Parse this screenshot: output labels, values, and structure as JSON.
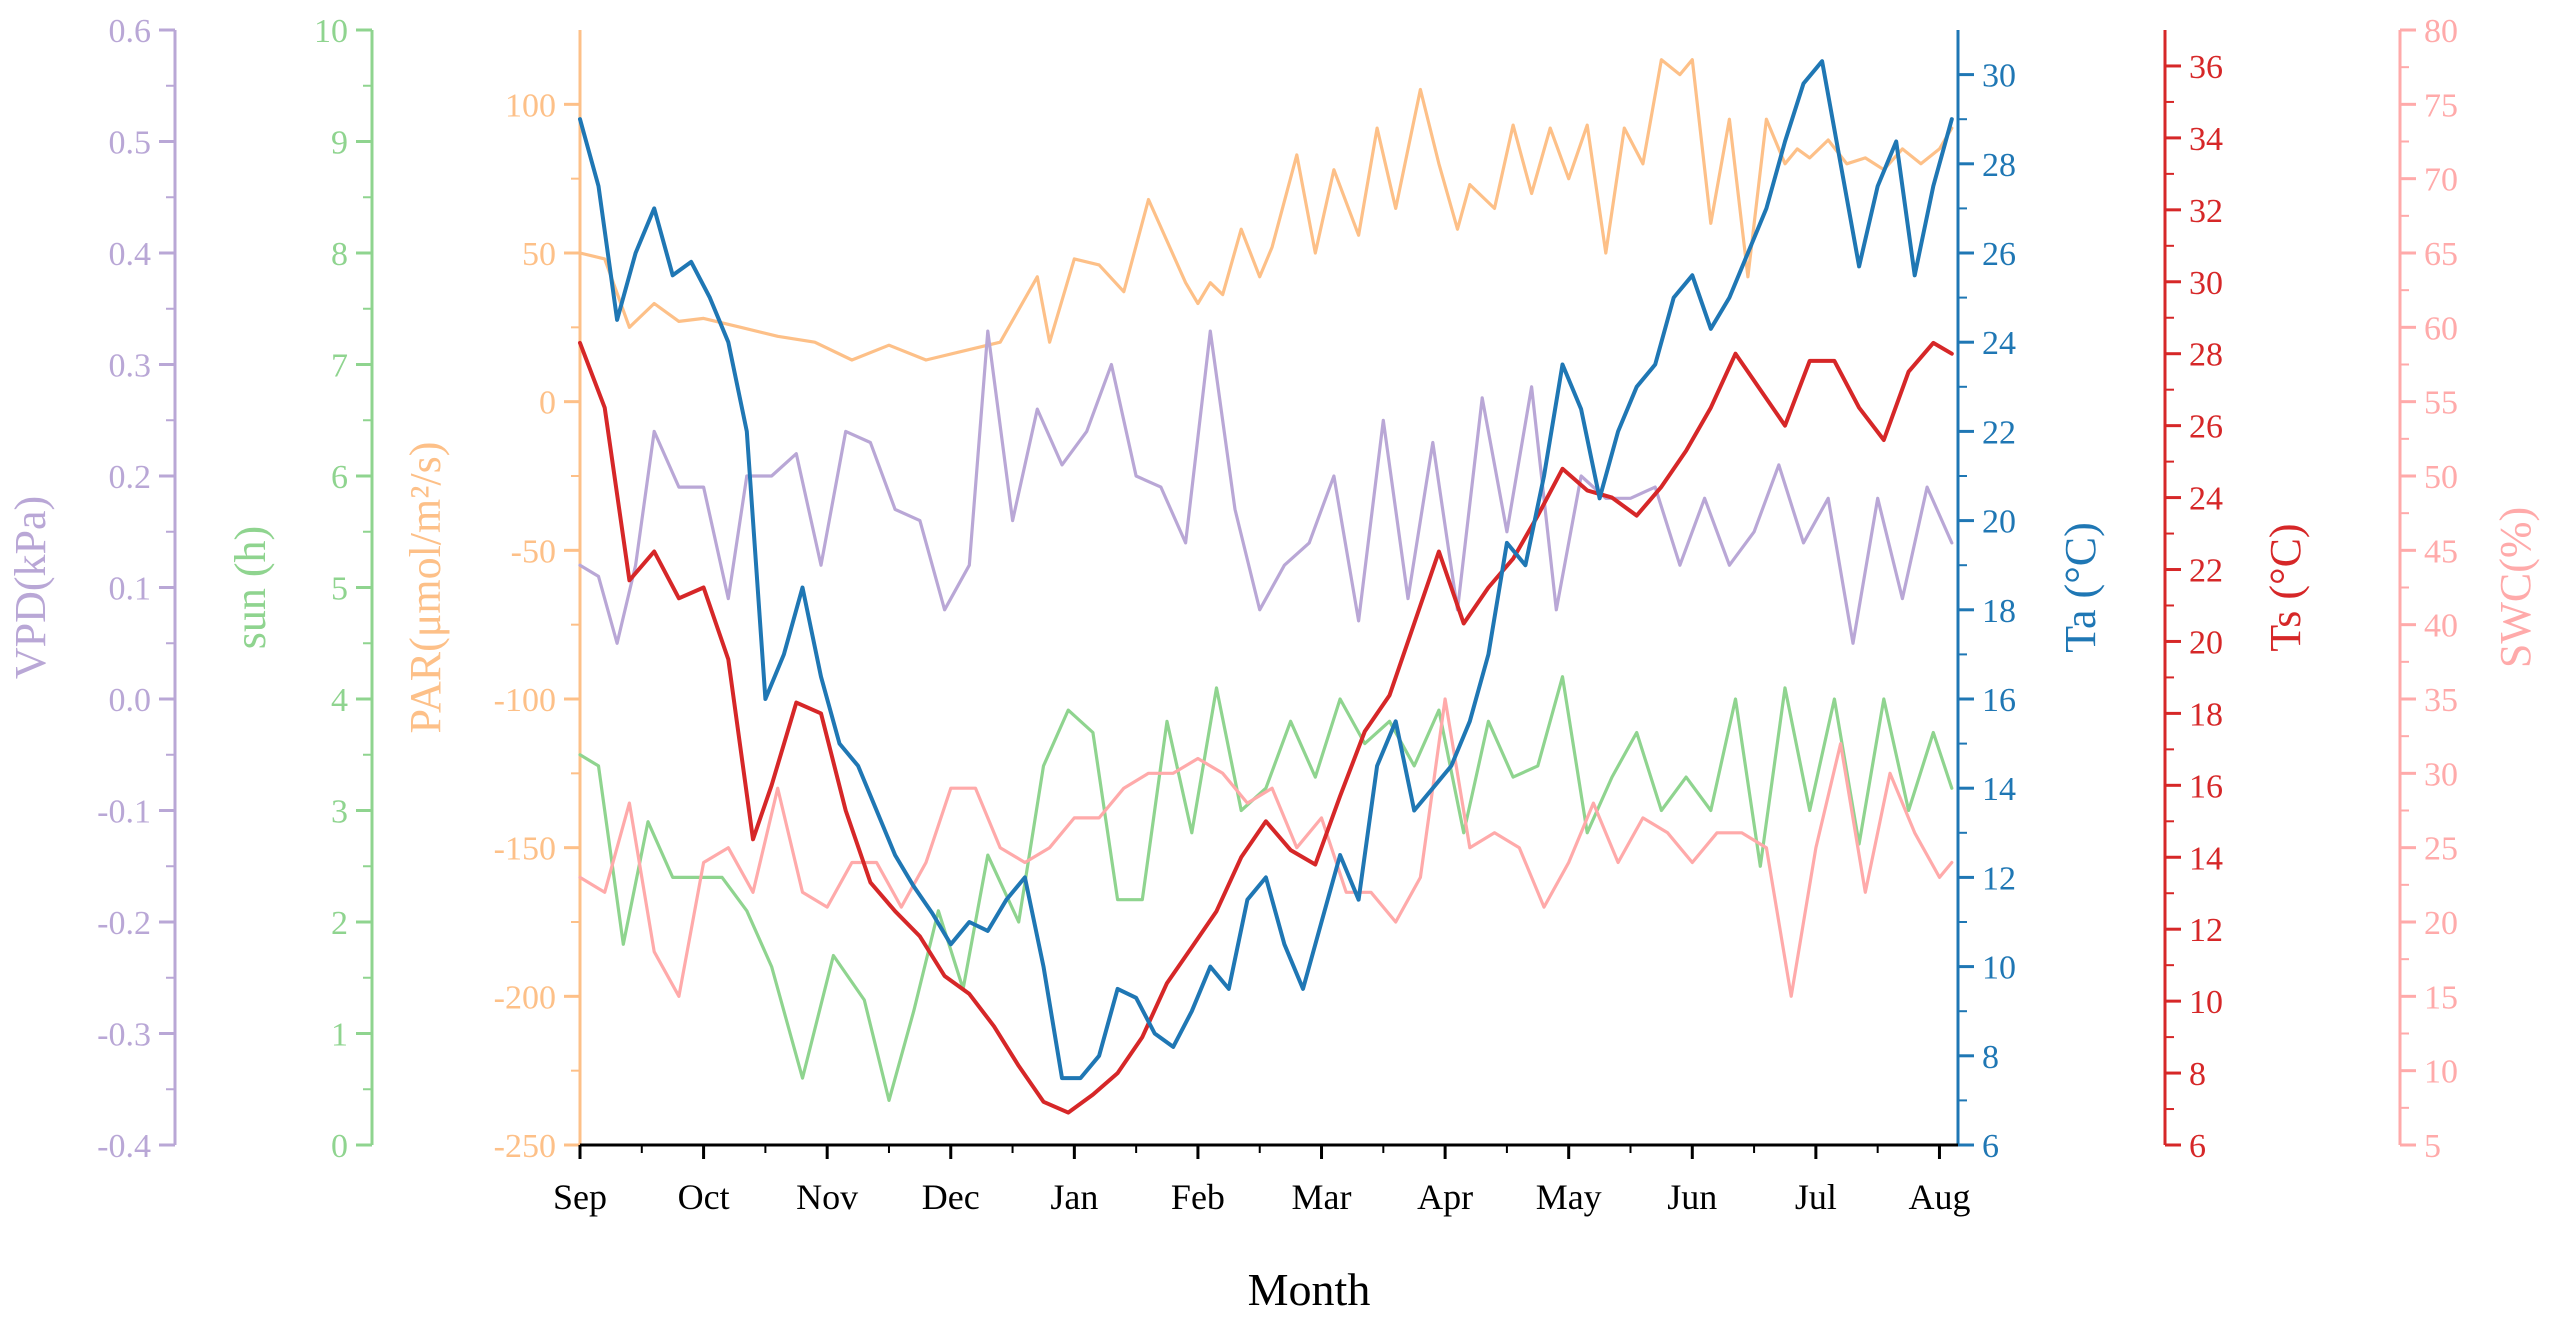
{
  "chart_data": {
    "type": "line",
    "title": "",
    "xlabel": "Month",
    "categories": [
      "Sep",
      "Oct",
      "Nov",
      "Dec",
      "Jan",
      "Feb",
      "Mar",
      "Apr",
      "May",
      "Jun",
      "Jul",
      "Aug"
    ],
    "grid": false,
    "axes": [
      {
        "id": "vpd",
        "label": "VPD(kPa)",
        "color": "#b9a7d6",
        "range": [
          -0.4,
          0.6
        ],
        "ticks": [
          "-0.4",
          "-0.3",
          "-0.2",
          "-0.1",
          "0.0",
          "0.1",
          "0.2",
          "0.3",
          "0.4",
          "0.5",
          "0.6"
        ]
      },
      {
        "id": "sun",
        "label": "sun (h)",
        "color": "#8fd48f",
        "range": [
          0,
          10
        ],
        "ticks": [
          "0",
          "1",
          "2",
          "3",
          "4",
          "5",
          "6",
          "7",
          "8",
          "9",
          "10"
        ]
      },
      {
        "id": "par",
        "label": "PAR(μmol/m²/s)",
        "color": "#fdc088",
        "range": [
          -250,
          125
        ],
        "ticks": [
          "-250",
          "-200",
          "-150",
          "-100",
          "-50",
          "0",
          "50",
          "100"
        ]
      },
      {
        "id": "ta",
        "label": "Ta (°C)",
        "color": "#1f77b4",
        "range": [
          6,
          31
        ],
        "ticks": [
          "6",
          "8",
          "10",
          "12",
          "14",
          "16",
          "18",
          "20",
          "22",
          "24",
          "26",
          "28",
          "30"
        ]
      },
      {
        "id": "ts",
        "label": "Ts (°C)",
        "color": "#d62728",
        "range": [
          6,
          37
        ],
        "ticks": [
          "6",
          "8",
          "10",
          "12",
          "14",
          "16",
          "18",
          "20",
          "22",
          "24",
          "26",
          "28",
          "30",
          "32",
          "34",
          "36"
        ]
      },
      {
        "id": "swc",
        "label": "SWC(%)",
        "color": "#ffaaaa",
        "range": [
          5,
          80
        ],
        "ticks": [
          "5",
          "10",
          "15",
          "20",
          "25",
          "30",
          "35",
          "40",
          "45",
          "50",
          "55",
          "60",
          "65",
          "70",
          "75",
          "80"
        ]
      }
    ],
    "series": [
      {
        "name": "PAR",
        "axis": "par",
        "color": "#fdc088",
        "x": [
          0,
          0.2,
          0.4,
          0.6,
          0.8,
          1.0,
          1.3,
          1.6,
          1.9,
          2.2,
          2.5,
          2.8,
          3.1,
          3.4,
          3.7,
          3.8,
          4.0,
          4.2,
          4.4,
          4.6,
          4.9,
          5.0,
          5.1,
          5.2,
          5.35,
          5.5,
          5.6,
          5.8,
          5.95,
          6.1,
          6.3,
          6.45,
          6.6,
          6.8,
          6.95,
          7.1,
          7.2,
          7.4,
          7.55,
          7.7,
          7.85,
          8.0,
          8.15,
          8.3,
          8.45,
          8.6,
          8.75,
          8.9,
          9.0,
          9.15,
          9.3,
          9.45,
          9.6,
          9.75,
          9.85,
          9.95,
          10.1,
          10.25,
          10.4,
          10.55,
          10.7,
          10.85,
          11.0,
          11.1
        ],
        "values": [
          50,
          48,
          25,
          33,
          27,
          28,
          25,
          22,
          20,
          14,
          19,
          14,
          17,
          20,
          42,
          20,
          48,
          46,
          37,
          68,
          40,
          33,
          40,
          36,
          58,
          42,
          52,
          83,
          50,
          78,
          56,
          92,
          65,
          105,
          80,
          58,
          73,
          65,
          93,
          70,
          92,
          75,
          93,
          50,
          92,
          80,
          115,
          110,
          115,
          60,
          95,
          42,
          95,
          80,
          85,
          82,
          88,
          80,
          82,
          78,
          85,
          80,
          85,
          92
        ]
      },
      {
        "name": "sun",
        "axis": "sun",
        "color": "#8fd48f",
        "x": [
          0,
          0.15,
          0.35,
          0.55,
          0.75,
          0.95,
          1.15,
          1.35,
          1.55,
          1.8,
          2.05,
          2.3,
          2.5,
          2.7,
          2.9,
          3.1,
          3.3,
          3.55,
          3.75,
          3.95,
          4.15,
          4.35,
          4.55,
          4.75,
          4.95,
          5.15,
          5.35,
          5.55,
          5.75,
          5.95,
          6.15,
          6.35,
          6.55,
          6.75,
          6.95,
          7.15,
          7.35,
          7.55,
          7.75,
          7.95,
          8.15,
          8.35,
          8.55,
          8.75,
          8.95,
          9.15,
          9.35,
          9.55,
          9.75,
          9.95,
          10.15,
          10.35,
          10.55,
          10.75,
          10.95,
          11.1
        ],
        "values": [
          3.5,
          3.4,
          1.8,
          2.9,
          2.4,
          2.4,
          2.4,
          2.1,
          1.6,
          0.6,
          1.7,
          1.3,
          0.4,
          1.2,
          2.1,
          1.4,
          2.6,
          2.0,
          3.4,
          3.9,
          3.7,
          2.2,
          2.2,
          3.8,
          2.8,
          4.1,
          3.0,
          3.2,
          3.8,
          3.3,
          4.0,
          3.6,
          3.8,
          3.4,
          3.9,
          2.8,
          3.8,
          3.3,
          3.4,
          4.2,
          2.8,
          3.3,
          3.7,
          3.0,
          3.3,
          3.0,
          4.0,
          2.5,
          4.1,
          3.0,
          4.0,
          2.7,
          4.0,
          3.0,
          3.7,
          3.2
        ]
      },
      {
        "name": "VPD",
        "axis": "vpd",
        "color": "#b9a7d6",
        "x": [
          0,
          0.15,
          0.3,
          0.45,
          0.6,
          0.8,
          1.0,
          1.2,
          1.35,
          1.55,
          1.75,
          1.95,
          2.15,
          2.35,
          2.55,
          2.75,
          2.95,
          3.15,
          3.3,
          3.5,
          3.7,
          3.9,
          4.1,
          4.3,
          4.5,
          4.7,
          4.9,
          5.1,
          5.3,
          5.5,
          5.7,
          5.9,
          6.1,
          6.3,
          6.5,
          6.7,
          6.9,
          7.1,
          7.3,
          7.5,
          7.7,
          7.9,
          8.1,
          8.3,
          8.5,
          8.7,
          8.9,
          9.1,
          9.3,
          9.5,
          9.7,
          9.9,
          10.1,
          10.3,
          10.5,
          10.7,
          10.9,
          11.1
        ],
        "values": [
          0.12,
          0.11,
          0.05,
          0.12,
          0.24,
          0.19,
          0.19,
          0.09,
          0.2,
          0.2,
          0.22,
          0.12,
          0.24,
          0.23,
          0.17,
          0.16,
          0.08,
          0.12,
          0.33,
          0.16,
          0.26,
          0.21,
          0.24,
          0.3,
          0.2,
          0.19,
          0.14,
          0.33,
          0.17,
          0.08,
          0.12,
          0.14,
          0.2,
          0.07,
          0.25,
          0.09,
          0.23,
          0.08,
          0.27,
          0.15,
          0.28,
          0.08,
          0.2,
          0.18,
          0.18,
          0.19,
          0.12,
          0.18,
          0.12,
          0.15,
          0.21,
          0.14,
          0.18,
          0.05,
          0.18,
          0.09,
          0.19,
          0.14
        ]
      },
      {
        "name": "SWC",
        "axis": "swc",
        "color": "#ffaaaa",
        "x": [
          0,
          0.2,
          0.4,
          0.6,
          0.8,
          1.0,
          1.2,
          1.4,
          1.6,
          1.8,
          2.0,
          2.2,
          2.4,
          2.6,
          2.8,
          3.0,
          3.2,
          3.4,
          3.6,
          3.8,
          4.0,
          4.2,
          4.4,
          4.6,
          4.8,
          5.0,
          5.2,
          5.4,
          5.6,
          5.8,
          6.0,
          6.2,
          6.4,
          6.6,
          6.8,
          7.0,
          7.2,
          7.4,
          7.6,
          7.8,
          8.0,
          8.2,
          8.4,
          8.6,
          8.8,
          9.0,
          9.2,
          9.4,
          9.6,
          9.8,
          10.0,
          10.2,
          10.4,
          10.6,
          10.8,
          11.0,
          11.1
        ],
        "values": [
          23,
          22,
          28,
          18,
          15,
          24,
          25,
          22,
          29,
          22,
          21,
          24,
          24,
          21,
          24,
          29,
          29,
          25,
          24,
          25,
          27,
          27,
          29,
          30,
          30,
          31,
          30,
          28,
          29,
          25,
          27,
          22,
          22,
          20,
          23,
          35,
          25,
          26,
          25,
          21,
          24,
          28,
          24,
          27,
          26,
          24,
          26,
          26,
          25,
          15,
          25,
          32,
          22,
          30,
          26,
          23,
          24
        ]
      },
      {
        "name": "Ts",
        "axis": "ts",
        "color": "#d62728",
        "x": [
          0,
          0.2,
          0.4,
          0.6,
          0.8,
          1.0,
          1.2,
          1.4,
          1.55,
          1.75,
          1.95,
          2.15,
          2.35,
          2.55,
          2.75,
          2.95,
          3.15,
          3.35,
          3.55,
          3.75,
          3.95,
          4.15,
          4.35,
          4.55,
          4.75,
          4.95,
          5.15,
          5.35,
          5.55,
          5.75,
          5.95,
          6.15,
          6.35,
          6.55,
          6.75,
          6.95,
          7.15,
          7.35,
          7.55,
          7.75,
          7.95,
          8.15,
          8.35,
          8.55,
          8.75,
          8.95,
          9.15,
          9.35,
          9.55,
          9.75,
          9.95,
          10.15,
          10.35,
          10.55,
          10.75,
          10.95,
          11.1
        ],
        "values": [
          28.3,
          26.5,
          21.7,
          22.5,
          21.2,
          21.5,
          19.5,
          14.5,
          16.0,
          18.3,
          18.0,
          15.3,
          13.3,
          12.5,
          11.8,
          10.7,
          10.2,
          9.3,
          8.2,
          7.2,
          6.9,
          7.4,
          8.0,
          9.0,
          10.5,
          11.5,
          12.5,
          14.0,
          15.0,
          14.2,
          13.8,
          15.7,
          17.5,
          18.5,
          20.5,
          22.5,
          20.5,
          21.5,
          22.3,
          23.5,
          24.8,
          24.2,
          24.0,
          23.5,
          24.3,
          25.3,
          26.5,
          28.0,
          27.0,
          26.0,
          27.8,
          27.8,
          26.5,
          25.6,
          27.5,
          28.3,
          28.0
        ]
      },
      {
        "name": "Ta",
        "axis": "ta",
        "color": "#1f77b4",
        "x": [
          0,
          0.15,
          0.3,
          0.45,
          0.6,
          0.75,
          0.9,
          1.05,
          1.2,
          1.35,
          1.5,
          1.65,
          1.8,
          1.95,
          2.1,
          2.25,
          2.4,
          2.55,
          2.7,
          2.85,
          3.0,
          3.15,
          3.3,
          3.45,
          3.6,
          3.75,
          3.9,
          4.05,
          4.2,
          4.35,
          4.5,
          4.65,
          4.8,
          4.95,
          5.1,
          5.25,
          5.4,
          5.55,
          5.7,
          5.85,
          6.0,
          6.15,
          6.3,
          6.45,
          6.6,
          6.75,
          6.9,
          7.05,
          7.2,
          7.35,
          7.5,
          7.65,
          7.8,
          7.95,
          8.1,
          8.25,
          8.4,
          8.55,
          8.7,
          8.85,
          9.0,
          9.15,
          9.3,
          9.45,
          9.6,
          9.75,
          9.9,
          10.05,
          10.2,
          10.35,
          10.5,
          10.65,
          10.8,
          10.95,
          11.1
        ],
        "values": [
          29.0,
          27.5,
          24.5,
          26.0,
          27.0,
          25.5,
          25.8,
          25.0,
          24.0,
          22.0,
          16.0,
          17.0,
          18.5,
          16.5,
          15.0,
          14.5,
          13.5,
          12.5,
          11.8,
          11.2,
          10.5,
          11.0,
          10.8,
          11.5,
          12.0,
          10.0,
          7.5,
          7.5,
          8.0,
          9.5,
          9.3,
          8.5,
          8.2,
          9.0,
          10.0,
          9.5,
          11.5,
          12.0,
          10.5,
          9.5,
          11.0,
          12.5,
          11.5,
          14.5,
          15.5,
          13.5,
          14.0,
          14.5,
          15.5,
          17.0,
          19.5,
          19.0,
          21.0,
          23.5,
          22.5,
          20.5,
          22.0,
          23.0,
          23.5,
          25.0,
          25.5,
          24.3,
          25.0,
          26.0,
          27.0,
          28.5,
          29.8,
          30.3,
          28.0,
          25.7,
          27.5,
          28.5,
          25.5,
          27.5,
          29.0
        ]
      }
    ]
  }
}
